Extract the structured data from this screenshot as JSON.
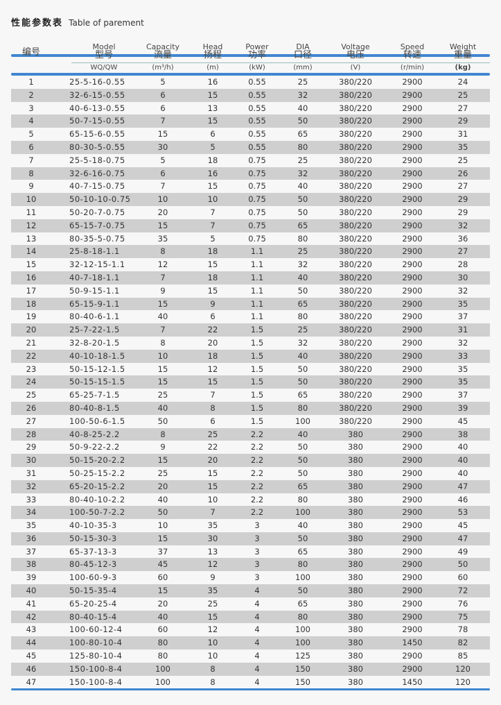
{
  "title": {
    "cn": "性能参数表",
    "en": "Table of parement"
  },
  "headers": [
    {
      "en": "",
      "cn": "编号",
      "unit": ""
    },
    {
      "en": "Model",
      "cn": "型号",
      "unit": "WQ/QW"
    },
    {
      "en": "Capacity",
      "cn": "流量",
      "unit": "(m³/h)"
    },
    {
      "en": "Head",
      "cn": "扬程",
      "unit": "(m)"
    },
    {
      "en": "Power",
      "cn": "功率",
      "unit": "(kW)"
    },
    {
      "en": "DIA",
      "cn": "口径",
      "unit": "(mm)"
    },
    {
      "en": "Voltage",
      "cn": "电压",
      "unit": "(V)"
    },
    {
      "en": "Speed",
      "cn": "转速",
      "unit": "(r/min)"
    },
    {
      "en": "Weight",
      "cn": "重量",
      "unit": "(kg)"
    }
  ],
  "colors": {
    "accent": "#3f86cf",
    "alt_row": "#cfcfcf"
  },
  "rows": [
    [
      "1",
      "25-5-16-0.55",
      "5",
      "16",
      "0.55",
      "25",
      "380/220",
      "2900",
      "24"
    ],
    [
      "2",
      "32-6-15-0.55",
      "6",
      "15",
      "0.55",
      "32",
      "380/220",
      "2900",
      "25"
    ],
    [
      "3",
      "40-6-13-0.55",
      "6",
      "13",
      "0.55",
      "40",
      "380/220",
      "2900",
      "27"
    ],
    [
      "4",
      "50-7-15-0.55",
      "7",
      "15",
      "0.55",
      "50",
      "380/220",
      "2900",
      "29"
    ],
    [
      "5",
      "65-15-6-0.55",
      "15",
      "6",
      "0.55",
      "65",
      "380/220",
      "2900",
      "31"
    ],
    [
      "6",
      "80-30-5-0.55",
      "30",
      "5",
      "0.55",
      "80",
      "380/220",
      "2900",
      "35"
    ],
    [
      "7",
      "25-5-18-0.75",
      "5",
      "18",
      "0.75",
      "25",
      "380/220",
      "2900",
      "25"
    ],
    [
      "8",
      "32-6-16-0.75",
      "6",
      "16",
      "0.75",
      "32",
      "380/220",
      "2900",
      "26"
    ],
    [
      "9",
      "40-7-15-0.75",
      "7",
      "15",
      "0.75",
      "40",
      "380/220",
      "2900",
      "27"
    ],
    [
      "10",
      "50-10-10-0.75",
      "10",
      "10",
      "0.75",
      "50",
      "380/220",
      "2900",
      "29"
    ],
    [
      "11",
      "50-20-7-0.75",
      "20",
      "7",
      "0.75",
      "50",
      "380/220",
      "2900",
      "29"
    ],
    [
      "12",
      "65-15-7-0.75",
      "15",
      "7",
      "0.75",
      "65",
      "380/220",
      "2900",
      "32"
    ],
    [
      "13",
      "80-35-5-0.75",
      "35",
      "5",
      "0.75",
      "80",
      "380/220",
      "2900",
      "36"
    ],
    [
      "14",
      "25-8-18-1.1",
      "8",
      "18",
      "1.1",
      "25",
      "380/220",
      "2900",
      "27"
    ],
    [
      "15",
      "32-12-15-1.1",
      "12",
      "15",
      "1.1",
      "32",
      "380/220",
      "2900",
      "28"
    ],
    [
      "16",
      "40-7-18-1.1",
      "7",
      "18",
      "1.1",
      "40",
      "380/220",
      "2900",
      "30"
    ],
    [
      "17",
      "50-9-15-1.1",
      "9",
      "15",
      "1.1",
      "50",
      "380/220",
      "2900",
      "32"
    ],
    [
      "18",
      "65-15-9-1.1",
      "15",
      "9",
      "1.1",
      "65",
      "380/220",
      "2900",
      "35"
    ],
    [
      "19",
      "80-40-6-1.1",
      "40",
      "6",
      "1.1",
      "80",
      "380/220",
      "2900",
      "37"
    ],
    [
      "20",
      "25-7-22-1.5",
      "7",
      "22",
      "1.5",
      "25",
      "380/220",
      "2900",
      "31"
    ],
    [
      "21",
      "32-8-20-1.5",
      "8",
      "20",
      "1.5",
      "32",
      "380/220",
      "2900",
      "32"
    ],
    [
      "22",
      "40-10-18-1.5",
      "10",
      "18",
      "1.5",
      "40",
      "380/220",
      "2900",
      "33"
    ],
    [
      "23",
      "50-15-12-1.5",
      "15",
      "12",
      "1.5",
      "50",
      "380/220",
      "2900",
      "35"
    ],
    [
      "24",
      "50-15-15-1.5",
      "15",
      "15",
      "1.5",
      "50",
      "380/220",
      "2900",
      "35"
    ],
    [
      "25",
      "65-25-7-1.5",
      "25",
      "7",
      "1.5",
      "65",
      "380/220",
      "2900",
      "37"
    ],
    [
      "26",
      "80-40-8-1.5",
      "40",
      "8",
      "1.5",
      "80",
      "380/220",
      "2900",
      "39"
    ],
    [
      "27",
      "100-50-6-1.5",
      "50",
      "6",
      "1.5",
      "100",
      "380/220",
      "2900",
      "45"
    ],
    [
      "28",
      "40-8-25-2.2",
      "8",
      "25",
      "2.2",
      "40",
      "380",
      "2900",
      "38"
    ],
    [
      "29",
      "50-9-22-2.2",
      "9",
      "22",
      "2.2",
      "50",
      "380",
      "2900",
      "40"
    ],
    [
      "30",
      "50-15-20-2.2",
      "15",
      "20",
      "2.2",
      "50",
      "380",
      "2900",
      "40"
    ],
    [
      "31",
      "50-25-15-2.2",
      "25",
      "15",
      "2.2",
      "50",
      "380",
      "2900",
      "40"
    ],
    [
      "32",
      "65-20-15-2.2",
      "20",
      "15",
      "2.2",
      "65",
      "380",
      "2900",
      "47"
    ],
    [
      "33",
      "80-40-10-2.2",
      "40",
      "10",
      "2.2",
      "80",
      "380",
      "2900",
      "46"
    ],
    [
      "34",
      "100-50-7-2.2",
      "50",
      "7",
      "2.2",
      "100",
      "380",
      "2900",
      "53"
    ],
    [
      "35",
      "40-10-35-3",
      "10",
      "35",
      "3",
      "40",
      "380",
      "2900",
      "45"
    ],
    [
      "36",
      "50-15-30-3",
      "15",
      "30",
      "3",
      "50",
      "380",
      "2900",
      "47"
    ],
    [
      "37",
      "65-37-13-3",
      "37",
      "13",
      "3",
      "65",
      "380",
      "2900",
      "49"
    ],
    [
      "38",
      "80-45-12-3",
      "45",
      "12",
      "3",
      "80",
      "380",
      "2900",
      "50"
    ],
    [
      "39",
      "100-60-9-3",
      "60",
      "9",
      "3",
      "100",
      "380",
      "2900",
      "60"
    ],
    [
      "40",
      "50-15-35-4",
      "15",
      "35",
      "4",
      "50",
      "380",
      "2900",
      "72"
    ],
    [
      "41",
      "65-20-25-4",
      "20",
      "25",
      "4",
      "65",
      "380",
      "2900",
      "76"
    ],
    [
      "42",
      "80-40-15-4",
      "40",
      "15",
      "4",
      "80",
      "380",
      "2900",
      "75"
    ],
    [
      "43",
      "100-60-12-4",
      "60",
      "12",
      "4",
      "100",
      "380",
      "2900",
      "78"
    ],
    [
      "44",
      "100-80-10-4",
      "80",
      "10",
      "4",
      "100",
      "380",
      "1450",
      "82"
    ],
    [
      "45",
      "125-80-10-4",
      "80",
      "10",
      "4",
      "125",
      "380",
      "2900",
      "85"
    ],
    [
      "46",
      "150-100-8-4",
      "100",
      "8",
      "4",
      "150",
      "380",
      "2900",
      "120"
    ],
    [
      "47",
      "150-100-8-4",
      "100",
      "8",
      "4",
      "150",
      "380",
      "1450",
      "120"
    ]
  ]
}
